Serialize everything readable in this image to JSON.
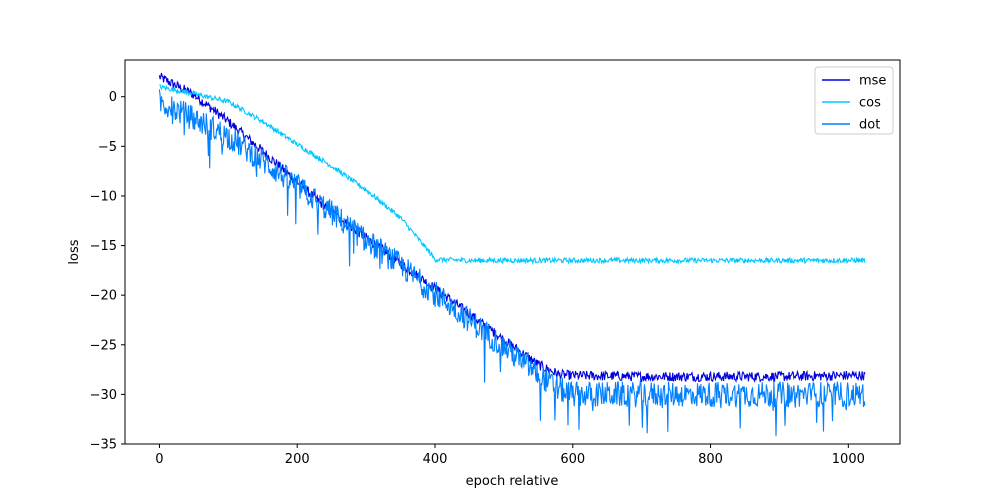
{
  "chart_data": {
    "type": "line",
    "title": "",
    "xlabel": "epoch relative",
    "ylabel": "loss",
    "xlim": [
      -50,
      1075
    ],
    "ylim": [
      -35,
      3.7
    ],
    "xticks": [
      0,
      200,
      400,
      600,
      800,
      1000
    ],
    "yticks": [
      -35,
      -30,
      -25,
      -20,
      -15,
      -10,
      -5,
      0
    ],
    "grid": false,
    "legend_position": "top-right",
    "series": [
      {
        "name": "mse",
        "color": "#0000dd",
        "points": [
          [
            0,
            2.0
          ],
          [
            50,
            0.2
          ],
          [
            100,
            -2.5
          ],
          [
            150,
            -5.5
          ],
          [
            200,
            -8.6
          ],
          [
            250,
            -11.7
          ],
          [
            300,
            -14.2
          ],
          [
            350,
            -16.8
          ],
          [
            400,
            -19.3
          ],
          [
            450,
            -21.9
          ],
          [
            500,
            -24.5
          ],
          [
            550,
            -27.0
          ],
          [
            580,
            -28.0
          ],
          [
            600,
            -28.1
          ],
          [
            700,
            -28.2
          ],
          [
            800,
            -28.2
          ],
          [
            900,
            -28.2
          ],
          [
            1000,
            -28.1
          ],
          [
            1024,
            -28.1
          ]
        ],
        "noise": 0.5,
        "spikes": 0
      },
      {
        "name": "cos",
        "color": "#00c8ff",
        "points": [
          [
            0,
            1.0
          ],
          [
            50,
            0.3
          ],
          [
            100,
            -0.5
          ],
          [
            150,
            -2.5
          ],
          [
            200,
            -4.8
          ],
          [
            250,
            -7.0
          ],
          [
            300,
            -9.4
          ],
          [
            350,
            -12.2
          ],
          [
            390,
            -15.5
          ],
          [
            400,
            -16.4
          ],
          [
            450,
            -16.5
          ],
          [
            600,
            -16.5
          ],
          [
            800,
            -16.5
          ],
          [
            1024,
            -16.5
          ]
        ],
        "noise": 0.25,
        "spikes": 0
      },
      {
        "name": "dot",
        "color": "#0080ff",
        "points": [
          [
            0,
            -0.5
          ],
          [
            50,
            -2.2
          ],
          [
            100,
            -4.0
          ],
          [
            150,
            -6.5
          ],
          [
            200,
            -9.0
          ],
          [
            250,
            -11.7
          ],
          [
            300,
            -14.5
          ],
          [
            350,
            -17.0
          ],
          [
            400,
            -19.8
          ],
          [
            450,
            -22.5
          ],
          [
            500,
            -25.2
          ],
          [
            550,
            -28.0
          ],
          [
            580,
            -29.5
          ],
          [
            600,
            -30.0
          ],
          [
            700,
            -30.0
          ],
          [
            800,
            -30.0
          ],
          [
            900,
            -30.0
          ],
          [
            1000,
            -30.0
          ],
          [
            1024,
            -30.0
          ]
        ],
        "noise": 1.3,
        "spikes": 1
      }
    ]
  }
}
